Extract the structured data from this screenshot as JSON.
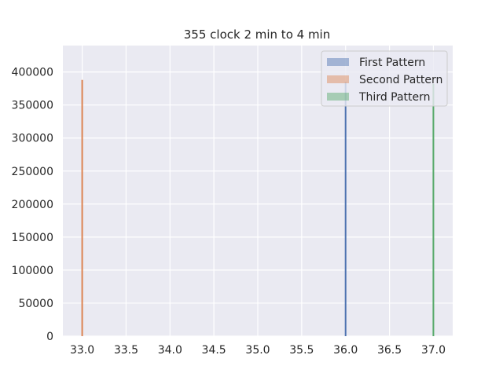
{
  "chart_data": {
    "type": "bar",
    "title": "355 clock 2 min to 4 min",
    "xlabel": "",
    "ylabel": "",
    "xlim": [
      32.78,
      37.22
    ],
    "ylim": [
      0,
      440000
    ],
    "xticks": [
      33.0,
      33.5,
      34.0,
      34.5,
      35.0,
      35.5,
      36.0,
      36.5,
      37.0
    ],
    "yticks": [
      0,
      50000,
      100000,
      150000,
      200000,
      250000,
      300000,
      350000,
      400000
    ],
    "grid": true,
    "legend_position": "top-right",
    "series": [
      {
        "name": "First Pattern",
        "color": "#4c72b0",
        "x": 36.0,
        "value": 385000
      },
      {
        "name": "Second Pattern",
        "color": "#dd8452",
        "x": 33.0,
        "value": 388000
      },
      {
        "name": "Third Pattern",
        "color": "#55a868",
        "x": 37.0,
        "value": 382000
      }
    ],
    "colors": {
      "background": "#eaeaf2",
      "grid": "#ffffff",
      "text": "#262626"
    }
  }
}
